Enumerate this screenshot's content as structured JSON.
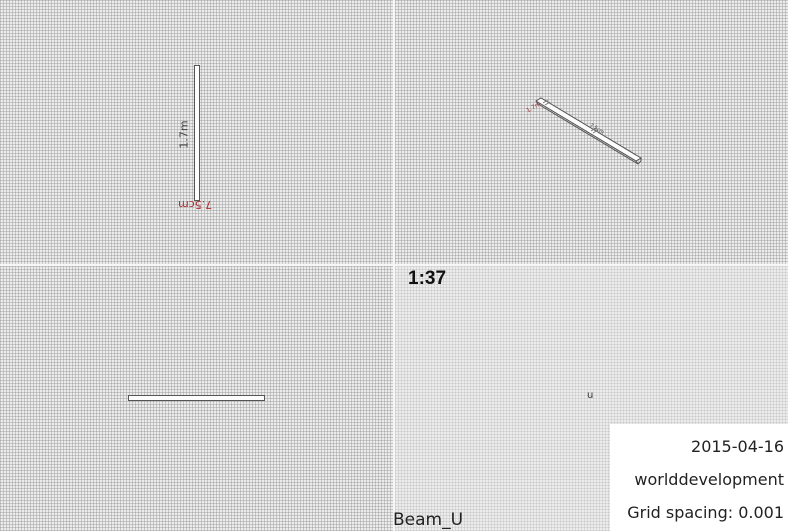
{
  "viewports": {
    "top_left": {
      "length_label": "1.7m",
      "width_label": "7.5cm"
    },
    "top_right": {
      "label_a": "1.7m",
      "label_b": "7.5cm"
    },
    "bottom_right": {
      "section_label": "u"
    }
  },
  "scale": "1:37",
  "title": "Beam_U",
  "info": {
    "date": "2015-04-16",
    "author": "worlddevelopment",
    "grid_spacing": "Grid spacing: 0.001"
  },
  "colors": {
    "background": "#ececec",
    "beam_fill": "#fdfdfd",
    "beam_outline": "#555555",
    "dimension_red": "#b03030"
  }
}
